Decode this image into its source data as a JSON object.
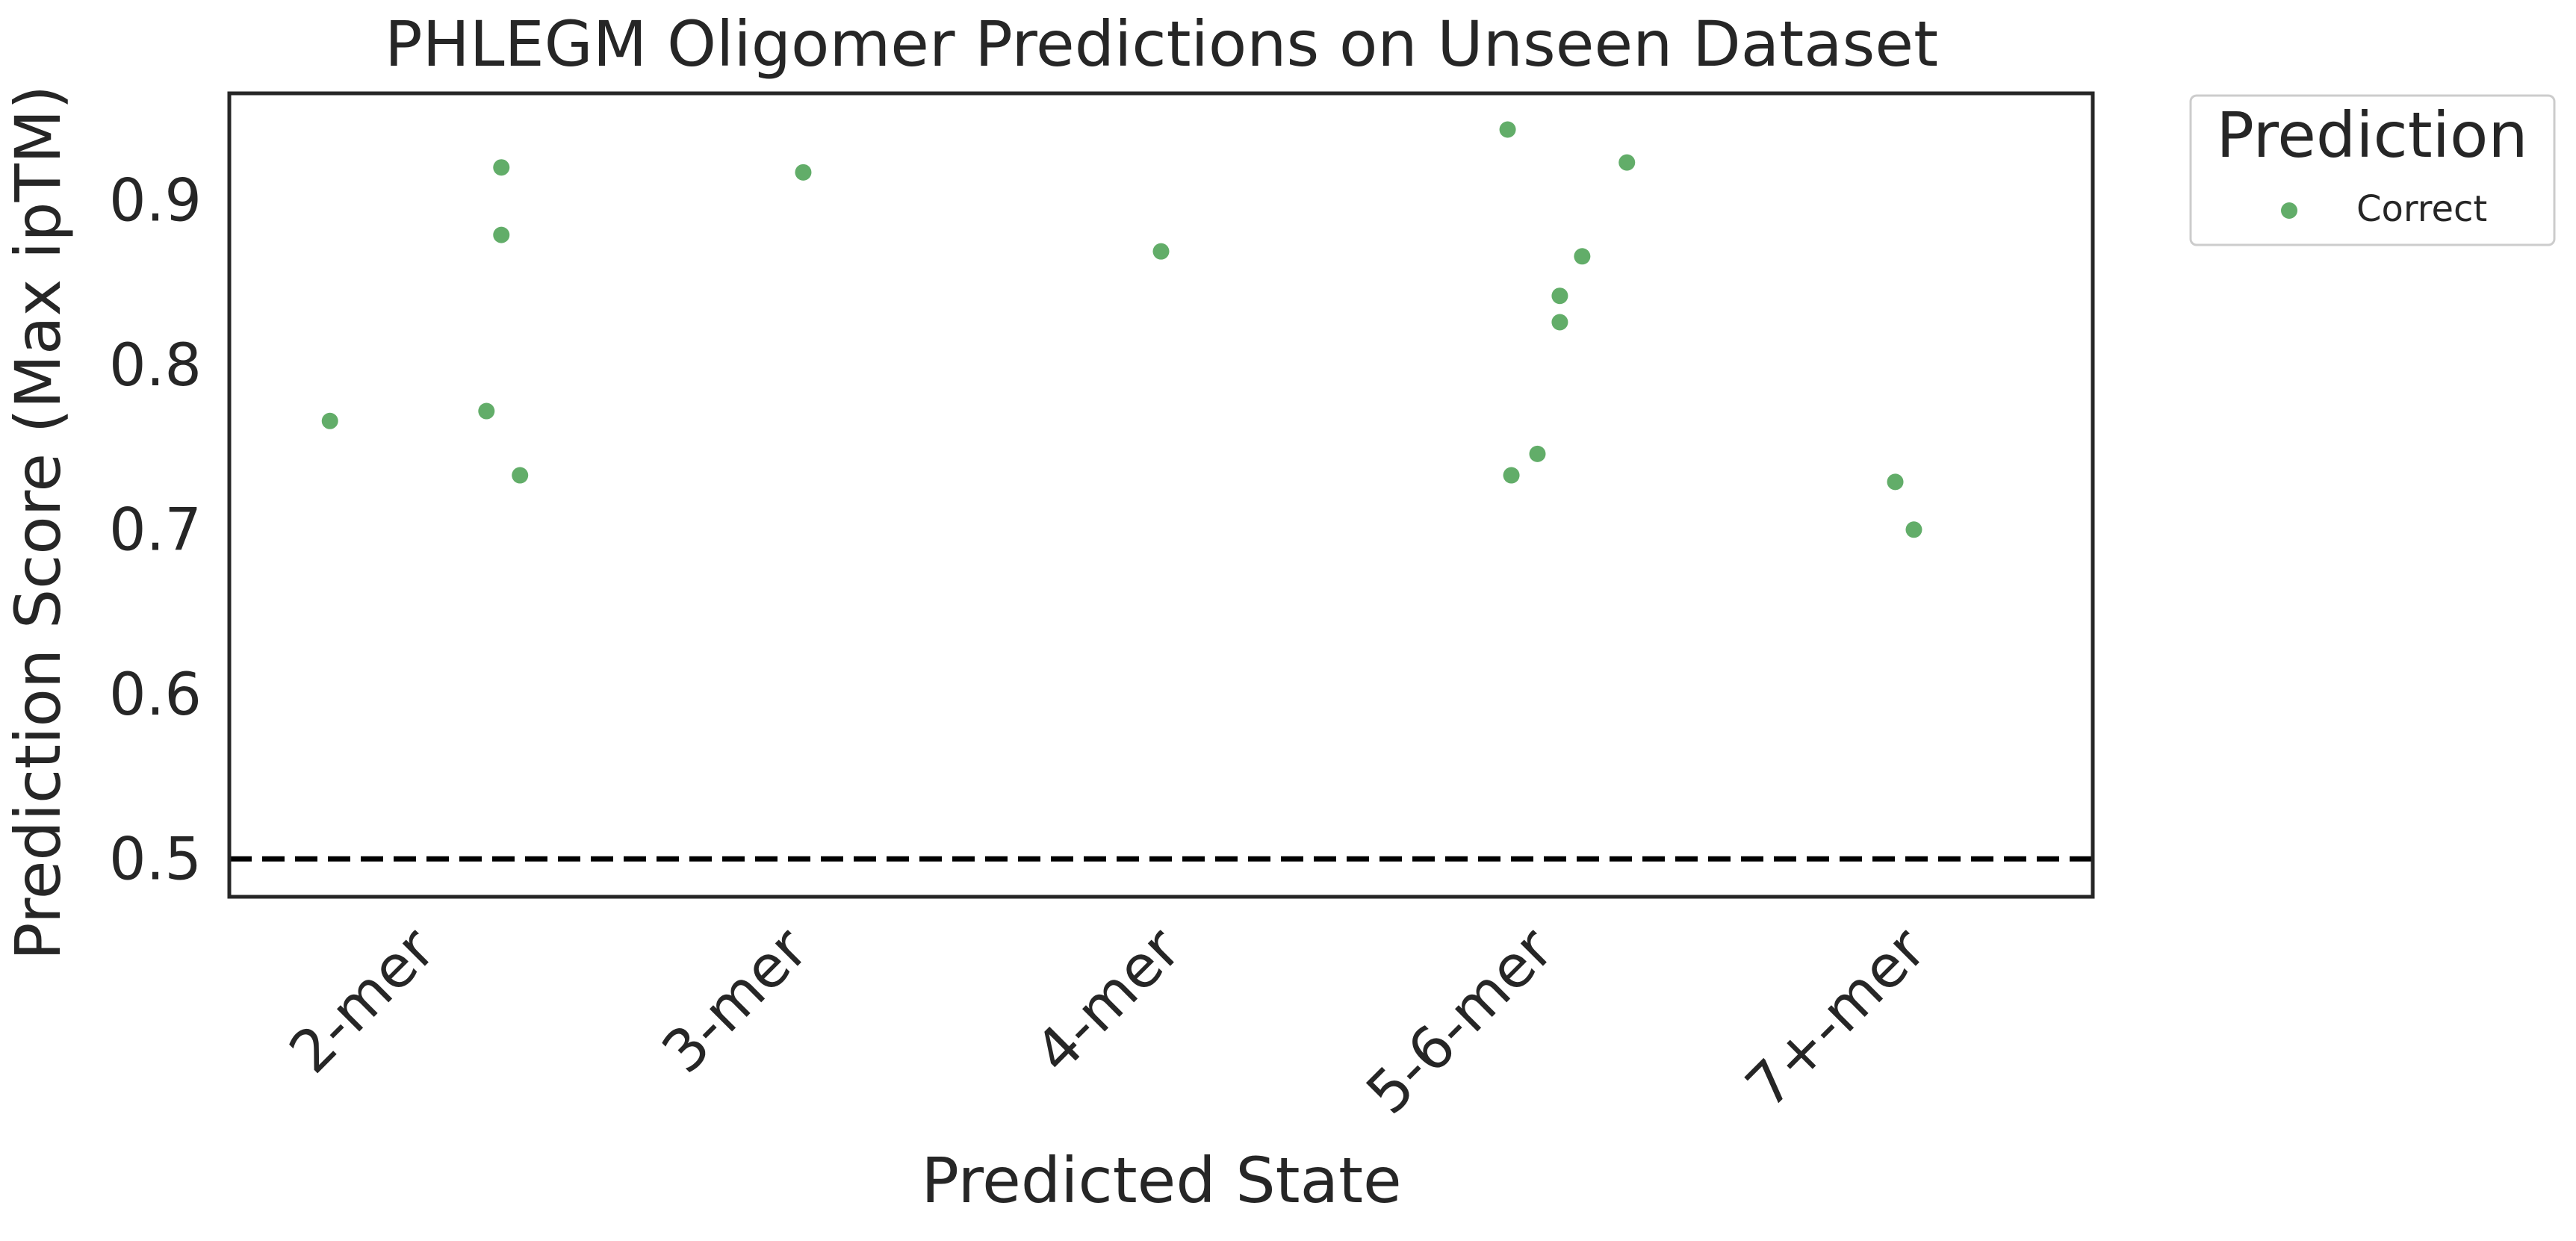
{
  "chart_data": {
    "type": "scatter",
    "title": "PHLEGM Oligomer Predictions on Unseen Dataset",
    "xlabel": "Predicted State",
    "ylabel": "Prediction Score (Max ipTM)",
    "categories": [
      "2-mer",
      "3-mer",
      "4-mer",
      "5-6-mer",
      "7+-mer"
    ],
    "ylim": [
      0.477,
      0.965
    ],
    "yticks": [
      "0.5",
      "0.6",
      "0.7",
      "0.8",
      "0.9"
    ],
    "grid": false,
    "threshold": 0.5,
    "legend": {
      "title": "Prediction",
      "placement": "outside-top-right",
      "entries": [
        "Correct"
      ]
    },
    "series": [
      {
        "name": "Correct",
        "color": "#62ad69",
        "points": [
          {
            "category": "2-mer",
            "jitter": -0.23,
            "y": 0.766
          },
          {
            "category": "2-mer",
            "jitter": 0.19,
            "y": 0.772
          },
          {
            "category": "2-mer",
            "jitter": 0.23,
            "y": 0.92
          },
          {
            "category": "2-mer",
            "jitter": 0.23,
            "y": 0.879
          },
          {
            "category": "2-mer",
            "jitter": 0.28,
            "y": 0.733
          },
          {
            "category": "3-mer",
            "jitter": 0.04,
            "y": 0.917
          },
          {
            "category": "4-mer",
            "jitter": 0.0,
            "y": 0.869
          },
          {
            "category": "5-6-mer",
            "jitter": -0.07,
            "y": 0.943
          },
          {
            "category": "5-6-mer",
            "jitter": -0.06,
            "y": 0.733
          },
          {
            "category": "5-6-mer",
            "jitter": 0.01,
            "y": 0.746
          },
          {
            "category": "5-6-mer",
            "jitter": 0.07,
            "y": 0.842
          },
          {
            "category": "5-6-mer",
            "jitter": 0.07,
            "y": 0.826
          },
          {
            "category": "5-6-mer",
            "jitter": 0.13,
            "y": 0.866
          },
          {
            "category": "5-6-mer",
            "jitter": 0.25,
            "y": 0.923
          },
          {
            "category": "7+-mer",
            "jitter": -0.03,
            "y": 0.729
          },
          {
            "category": "7+-mer",
            "jitter": 0.02,
            "y": 0.7
          }
        ]
      }
    ],
    "threshold_color": "#000000",
    "axis_color": "#262626"
  }
}
